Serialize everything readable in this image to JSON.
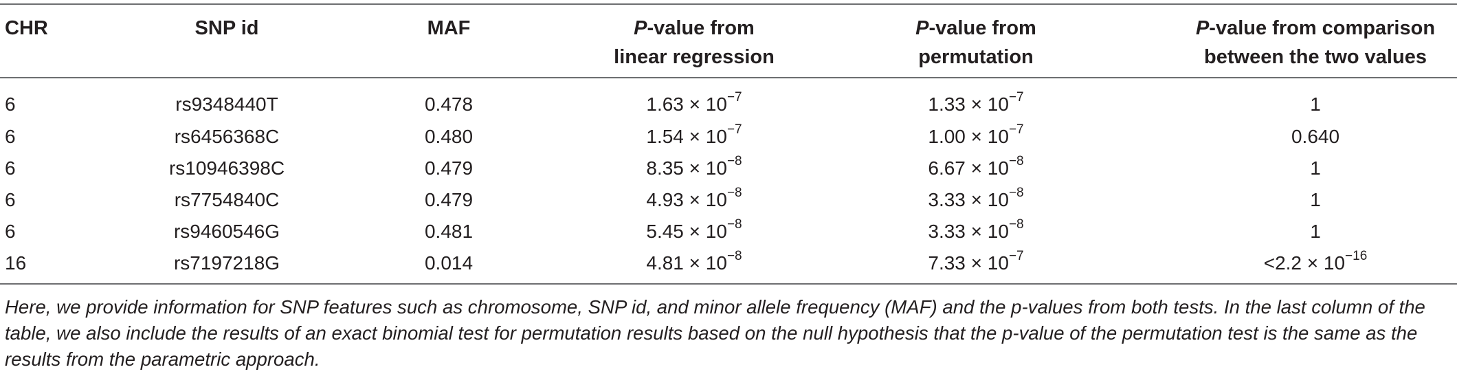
{
  "table": {
    "headers": {
      "chr": "CHR",
      "snp": "SNP id",
      "maf": "MAF",
      "p_lr": {
        "p": "P",
        "rest1": "-value from",
        "line2": "linear regression"
      },
      "p_perm": {
        "p": "P",
        "rest1": "-value from",
        "line2": "permutation"
      },
      "p_cmp": {
        "p": "P",
        "rest1": "-value from comparison",
        "line2": "between the two values"
      }
    },
    "rows": [
      {
        "chr": "6",
        "snp": "rs9348440T",
        "maf": "0.478",
        "lr": {
          "mant": "1.63 × 10",
          "exp": "−7"
        },
        "perm": {
          "mant": "1.33 × 10",
          "exp": "−7"
        },
        "cmp": {
          "mant": "1",
          "exp": ""
        }
      },
      {
        "chr": "6",
        "snp": "rs6456368C",
        "maf": "0.480",
        "lr": {
          "mant": "1.54 × 10",
          "exp": "−7"
        },
        "perm": {
          "mant": "1.00 × 10",
          "exp": "−7"
        },
        "cmp": {
          "mant": "0.640",
          "exp": ""
        }
      },
      {
        "chr": "6",
        "snp": "rs10946398C",
        "maf": "0.479",
        "lr": {
          "mant": "8.35 × 10",
          "exp": "−8"
        },
        "perm": {
          "mant": "6.67 × 10",
          "exp": "−8"
        },
        "cmp": {
          "mant": "1",
          "exp": ""
        }
      },
      {
        "chr": "6",
        "snp": "rs7754840C",
        "maf": "0.479",
        "lr": {
          "mant": "4.93 × 10",
          "exp": "−8"
        },
        "perm": {
          "mant": "3.33 × 10",
          "exp": "−8"
        },
        "cmp": {
          "mant": "1",
          "exp": ""
        }
      },
      {
        "chr": "6",
        "snp": "rs9460546G",
        "maf": "0.481",
        "lr": {
          "mant": "5.45 × 10",
          "exp": "−8"
        },
        "perm": {
          "mant": "3.33 × 10",
          "exp": "−8"
        },
        "cmp": {
          "mant": "1",
          "exp": ""
        }
      },
      {
        "chr": "16",
        "snp": "rs7197218G",
        "maf": "0.014",
        "lr": {
          "mant": "4.81 × 10",
          "exp": "−8"
        },
        "perm": {
          "mant": "7.33 × 10",
          "exp": "−7"
        },
        "cmp": {
          "mant": "<2.2 × 10",
          "exp": "−16"
        }
      }
    ]
  },
  "caption": "Here, we provide information for SNP features such as chromosome, SNP id, and minor allele frequency (MAF) and the p-values from both tests. In the last column of the table, we also include the results of an exact binomial test for permutation results based on the null hypothesis that the p-value of the permutation test is the same as the results from the parametric approach."
}
